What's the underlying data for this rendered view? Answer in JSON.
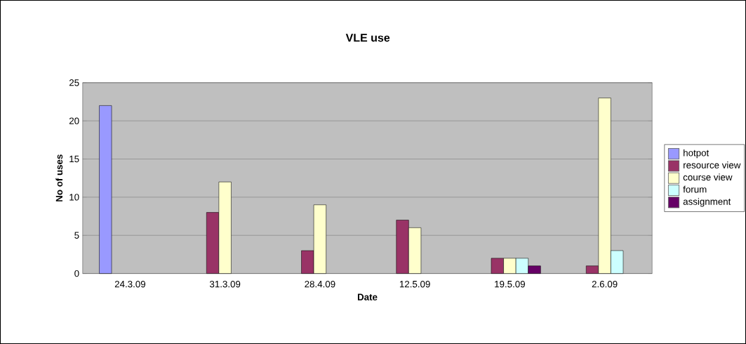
{
  "chart_data": {
    "type": "bar",
    "title": "VLE use",
    "xlabel": "Date",
    "ylabel": "No of uses",
    "categories": [
      "24.3.09",
      "31.3.09",
      "28.4.09",
      "12.5.09",
      "19.5.09",
      "2.6.09"
    ],
    "series": [
      {
        "name": "hotpot",
        "color": "#9999ff",
        "values": [
          22,
          null,
          null,
          null,
          null,
          null
        ]
      },
      {
        "name": "resource view",
        "color": "#993366",
        "values": [
          null,
          8,
          3,
          7,
          2,
          1
        ]
      },
      {
        "name": "course view",
        "color": "#ffffcc",
        "values": [
          null,
          12,
          9,
          6,
          2,
          23
        ]
      },
      {
        "name": "forum",
        "color": "#ccffff",
        "values": [
          null,
          null,
          null,
          null,
          2,
          3
        ]
      },
      {
        "name": "assignment",
        "color": "#660066",
        "values": [
          null,
          null,
          null,
          null,
          1,
          null
        ]
      }
    ],
    "ylim": [
      0,
      25
    ],
    "yticks": [
      0,
      5,
      10,
      15,
      20,
      25
    ],
    "grid": "y",
    "legend": "right"
  }
}
